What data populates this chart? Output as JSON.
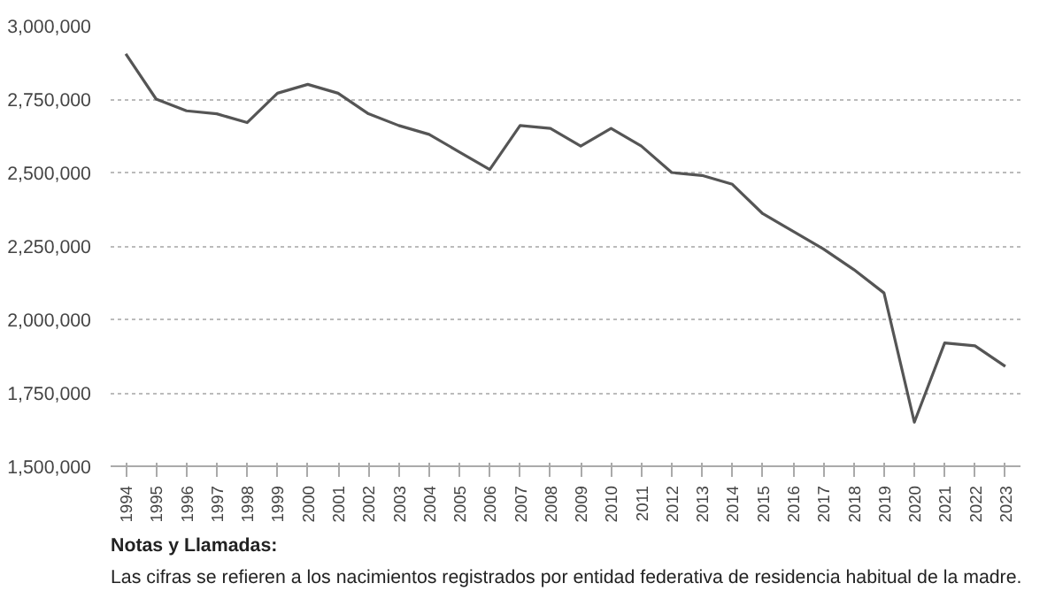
{
  "chart_data": {
    "type": "line",
    "categories": [
      "1994",
      "1995",
      "1996",
      "1997",
      "1998",
      "1999",
      "2000",
      "2001",
      "2002",
      "2003",
      "2004",
      "2005",
      "2006",
      "2007",
      "2008",
      "2009",
      "2010",
      "2011",
      "2012",
      "2013",
      "2014",
      "2015",
      "2016",
      "2017",
      "2018",
      "2019",
      "2020",
      "2021",
      "2022",
      "2023"
    ],
    "series": [
      {
        "color": "#555555",
        "values": [
          2904000,
          2750000,
          2710000,
          2700000,
          2670000,
          2770000,
          2800000,
          2770000,
          2700000,
          2660000,
          2630000,
          2570000,
          2510000,
          2660000,
          2650000,
          2590000,
          2650000,
          2590000,
          2500000,
          2490000,
          2460000,
          2360000,
          2300000,
          2240000,
          2170000,
          2090000,
          1650000,
          1920000,
          1910000,
          1840000
        ]
      }
    ],
    "ylim": [
      1500000,
      3000000
    ],
    "yticks": [
      {
        "value": 1500000,
        "label": "1,500,000"
      },
      {
        "value": 1750000,
        "label": "1,750,000"
      },
      {
        "value": 2000000,
        "label": "2,000,000"
      },
      {
        "value": 2250000,
        "label": "2,250,000"
      },
      {
        "value": 2500000,
        "label": "2,500,000"
      },
      {
        "value": 2750000,
        "label": "2,750,000"
      },
      {
        "value": 3000000,
        "label": "3,000,000"
      }
    ],
    "grid": "y",
    "marker": "none",
    "line_style": "solid",
    "annotations": [
      "Notas y Llamadas:",
      "Las cifras se refieren a los nacimientos registrados por entidad federativa de residencia habitual de la madre."
    ]
  }
}
